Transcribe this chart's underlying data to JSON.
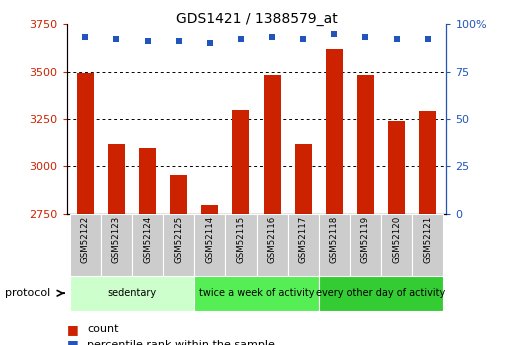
{
  "title": "GDS1421 / 1388579_at",
  "samples": [
    "GSM52122",
    "GSM52123",
    "GSM52124",
    "GSM52125",
    "GSM52114",
    "GSM52115",
    "GSM52116",
    "GSM52117",
    "GSM52118",
    "GSM52119",
    "GSM52120",
    "GSM52121"
  ],
  "counts": [
    3490,
    3120,
    3095,
    2955,
    2795,
    3300,
    3480,
    3120,
    3620,
    3480,
    3240,
    3290
  ],
  "percentile_ranks": [
    93,
    92,
    91,
    91,
    90,
    92,
    93,
    92,
    95,
    93,
    92,
    92
  ],
  "bar_color": "#cc2200",
  "dot_color": "#2255bb",
  "ylim_left": [
    2750,
    3750
  ],
  "ylim_right": [
    0,
    100
  ],
  "yticks_left": [
    2750,
    3000,
    3250,
    3500,
    3750
  ],
  "yticks_right": [
    0,
    25,
    50,
    75,
    100
  ],
  "groups": [
    {
      "label": "sedentary",
      "start": 0,
      "end": 4,
      "color": "#ccffcc"
    },
    {
      "label": "twice a week of activity",
      "start": 4,
      "end": 8,
      "color": "#55ee55"
    },
    {
      "label": "every other day of activity",
      "start": 8,
      "end": 12,
      "color": "#33cc33"
    }
  ],
  "protocol_label": "protocol",
  "legend_count_label": "count",
  "legend_percentile_label": "percentile rank within the sample",
  "tick_label_color_left": "#cc2200",
  "tick_label_color_right": "#2255bb",
  "bar_width": 0.55,
  "cell_color": "#cccccc"
}
